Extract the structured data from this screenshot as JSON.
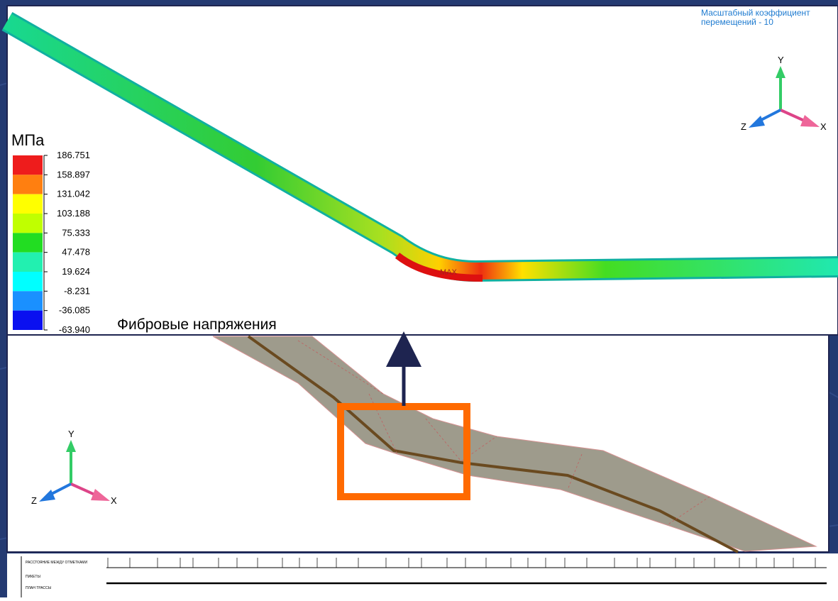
{
  "top_panel": {
    "scale_note": [
      "Масштабный коэффициент",
      "перемещений - 10"
    ],
    "unit": "МПа",
    "legend": {
      "labels": [
        "186.751",
        "158.897",
        "131.042",
        "103.188",
        "75.333",
        "47.478",
        "19.624",
        "-8.231",
        "-36.085",
        "-63.940"
      ],
      "colors": [
        "#ee1c1c",
        "#ff7f10",
        "#ffff00",
        "#c0ff00",
        "#22dd22",
        "#22f0b0",
        "#00ffff",
        "#1a90ff",
        "#0a10f0"
      ]
    },
    "caption": "Фибровые напряжения",
    "max_marker": "MAX",
    "axes": {
      "y": "Y",
      "z": "Z",
      "x": "X"
    }
  },
  "bottom_panel": {
    "axes": {
      "y": "Y",
      "z": "Z",
      "x": "X"
    }
  },
  "profile_strip": {
    "rows": [
      "РАССТОЯНИЕ МЕЖДУ ОТМЕТКАМИ",
      "ПИКЕТЫ",
      "ПЛАН ТРАССЫ"
    ]
  }
}
